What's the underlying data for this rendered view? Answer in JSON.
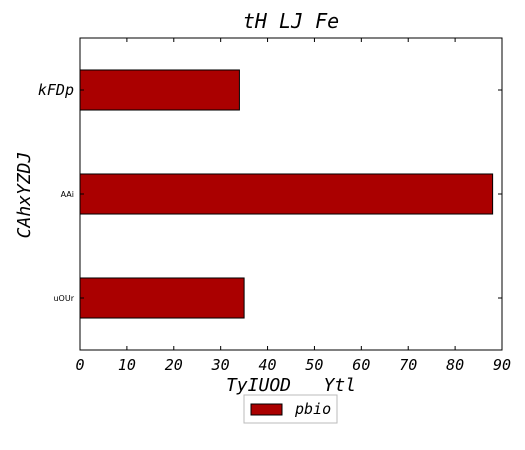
{
  "chart_data": {
    "type": "bar",
    "orientation": "horizontal",
    "title": "tH LJ Fe",
    "xlabel": "TyIUOD   Ytl",
    "ylabel": "CAhxYZDJ",
    "categories": [
      "kFDp",
      "AAi",
      "uOUr"
    ],
    "series": [
      {
        "name": "pbio",
        "values": [
          34,
          88,
          35
        ],
        "color": "#aa0000"
      }
    ],
    "xlim": [
      0,
      90
    ],
    "xticks": [
      0,
      10,
      20,
      30,
      40,
      50,
      60,
      70,
      80,
      90
    ],
    "grid": false,
    "legend_position": "bottom-center"
  }
}
